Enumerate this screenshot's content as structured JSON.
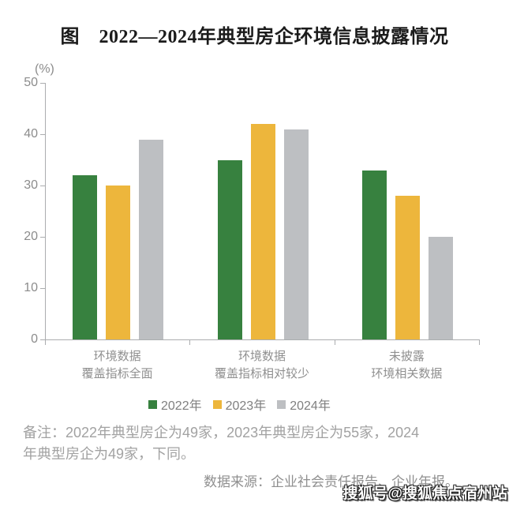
{
  "chart_data": {
    "type": "bar",
    "title": "图　2022—2024年典型房企环境信息披露情况",
    "unit_label": "(%)",
    "categories": [
      [
        "环境数据",
        "覆盖指标全面"
      ],
      [
        "环境数据",
        "覆盖指标相对较少"
      ],
      [
        "未披露",
        "环境相关数据"
      ]
    ],
    "series": [
      {
        "name": "2022年",
        "color": "#37813F",
        "values": [
          32,
          35,
          33
        ]
      },
      {
        "name": "2023年",
        "color": "#EDB63C",
        "values": [
          30,
          42,
          28
        ]
      },
      {
        "name": "2024年",
        "color": "#BDBFC2",
        "values": [
          39,
          41,
          20
        ]
      }
    ],
    "ylim": [
      0,
      50
    ],
    "yticks": [
      0,
      10,
      20,
      30,
      40,
      50
    ],
    "grid": false,
    "legend_position": "bottom"
  },
  "note": {
    "lines": [
      "备注：2022年典型房企为49家，2023年典型房企为55家，2024",
      "年典型房企为49家，下同。"
    ]
  },
  "source": "数据来源：企业社会责任报告、企业年报。",
  "watermark": "搜狐号@搜狐焦点宿州站"
}
